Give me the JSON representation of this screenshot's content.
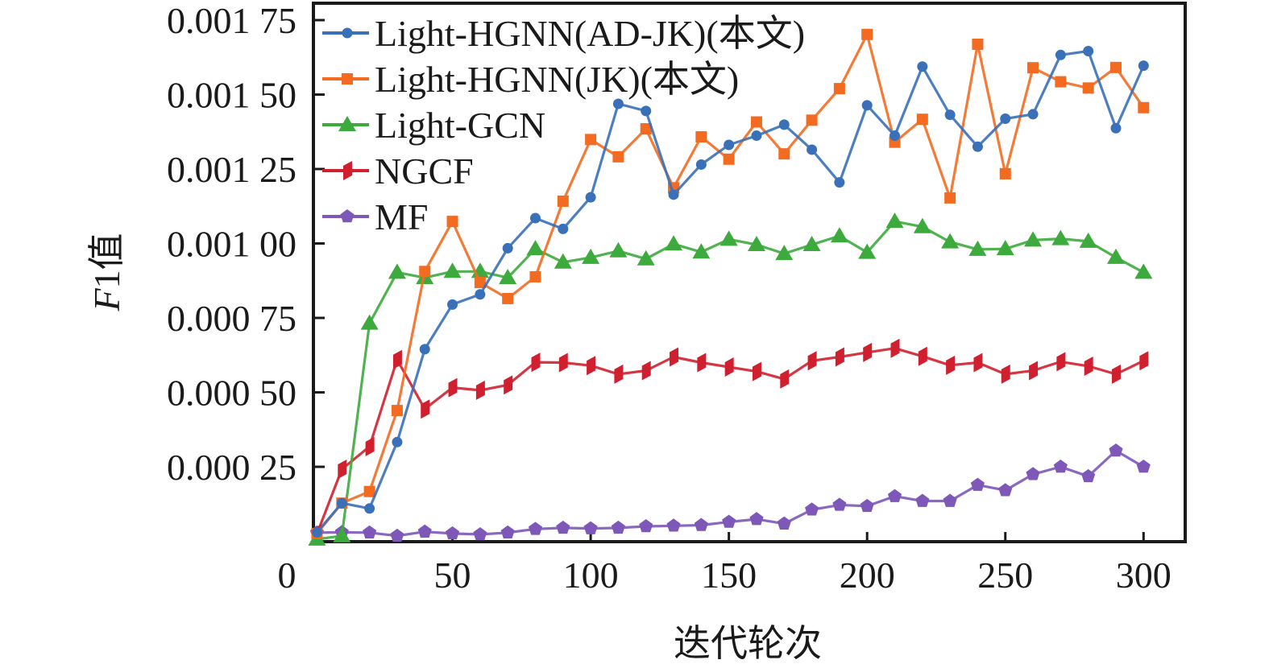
{
  "chart_data": {
    "type": "line",
    "title": "",
    "xlabel": "迭代轮次",
    "ylabel_italic": "F",
    "ylabel_rest": "1值",
    "ylabel": "F1值",
    "xlim": [
      0,
      310
    ],
    "ylim": [
      0,
      0.00182
    ],
    "xticks": [
      0,
      50,
      100,
      150,
      200,
      250,
      300
    ],
    "xtick_labels": [
      "0",
      "50",
      "100",
      "150",
      "200",
      "250",
      "300"
    ],
    "yticks": [
      0.00025,
      0.0005,
      0.00075,
      0.001,
      0.00125,
      0.0015,
      0.00175
    ],
    "ytick_labels": [
      "0.000 25",
      "0.000 50",
      "0.000 75",
      "0.001 00",
      "0.001 25",
      "0.001 50",
      "0.001 75"
    ],
    "grid": false,
    "legend_position": "top-left",
    "x": [
      1,
      10,
      20,
      30,
      40,
      50,
      60,
      70,
      80,
      90,
      100,
      110,
      120,
      130,
      140,
      150,
      160,
      170,
      180,
      190,
      200,
      210,
      220,
      230,
      240,
      250,
      260,
      270,
      280,
      290,
      300
    ],
    "series": [
      {
        "name": "Light-HGNN(AD-JK)(本文)",
        "color": "#3a70b8",
        "marker": "circle",
        "values": [
          3e-05,
          0.000128,
          0.00011,
          0.000333,
          0.000645,
          0.000795,
          0.000829,
          0.000984,
          0.001085,
          0.001049,
          0.001155,
          0.001469,
          0.001445,
          0.001164,
          0.001265,
          0.001331,
          0.001362,
          0.001399,
          0.001315,
          0.001205,
          0.001464,
          0.001362,
          0.001594,
          0.001432,
          0.001325,
          0.001419,
          0.001434,
          0.001633,
          0.001646,
          0.001387,
          0.001597
        ]
      },
      {
        "name": "Light-HGNN(JK)(本文)",
        "color": "#f26b21",
        "marker": "square",
        "values": [
          2.6e-05,
          0.000128,
          0.000167,
          0.000439,
          0.000906,
          0.001074,
          0.000869,
          0.000815,
          0.000888,
          0.001142,
          0.001349,
          0.001291,
          0.001385,
          0.001187,
          0.001358,
          0.001283,
          0.001408,
          0.001301,
          0.001414,
          0.00152,
          0.001702,
          0.00134,
          0.001417,
          0.001153,
          0.001669,
          0.001234,
          0.00159,
          0.001543,
          0.001522,
          0.001591,
          0.001456
        ]
      },
      {
        "name": "Light-GCN",
        "color": "#3daa3d",
        "marker": "triangle",
        "values": [
          7e-06,
          1.8e-05,
          0.000732,
          0.000903,
          0.000885,
          0.000906,
          0.000906,
          0.000885,
          0.000982,
          0.000937,
          0.000953,
          0.000975,
          0.000948,
          0.000998,
          0.000971,
          0.001014,
          0.000996,
          0.000966,
          0.000996,
          0.001025,
          0.00097,
          0.001074,
          0.001056,
          0.001005,
          0.00098,
          0.000982,
          0.001011,
          0.001016,
          0.001007,
          0.000953,
          0.000903
        ]
      },
      {
        "name": "NGCF",
        "color": "#d0202f",
        "marker": "parallelogram",
        "values": [
          2.5e-05,
          0.000242,
          0.000318,
          0.00061,
          0.000444,
          0.000516,
          0.000507,
          0.000525,
          0.000601,
          0.0006,
          0.00059,
          0.000561,
          0.000573,
          0.000619,
          0.0006,
          0.000585,
          0.00057,
          0.000545,
          0.000606,
          0.000619,
          0.000634,
          0.000648,
          0.000621,
          0.000591,
          0.0006,
          0.000561,
          0.000573,
          0.000603,
          0.000588,
          0.000561,
          0.000606
        ]
      },
      {
        "name": "MF",
        "color": "#7e58b9",
        "marker": "pentagon",
        "values": [
          2.9e-05,
          3e-05,
          2.9e-05,
          1.8e-05,
          3.2e-05,
          2.6e-05,
          2.3e-05,
          2.9e-05,
          4.1e-05,
          4.5e-05,
          4.3e-05,
          4.5e-05,
          5e-05,
          5.2e-05,
          5.4e-05,
          6.5e-05,
          7.4e-05,
          5.9e-05,
          0.000106,
          0.000122,
          0.000118,
          0.000151,
          0.000135,
          0.000135,
          0.000189,
          0.000171,
          0.000225,
          0.00025,
          0.000218,
          0.000304,
          0.00025
        ]
      }
    ]
  }
}
